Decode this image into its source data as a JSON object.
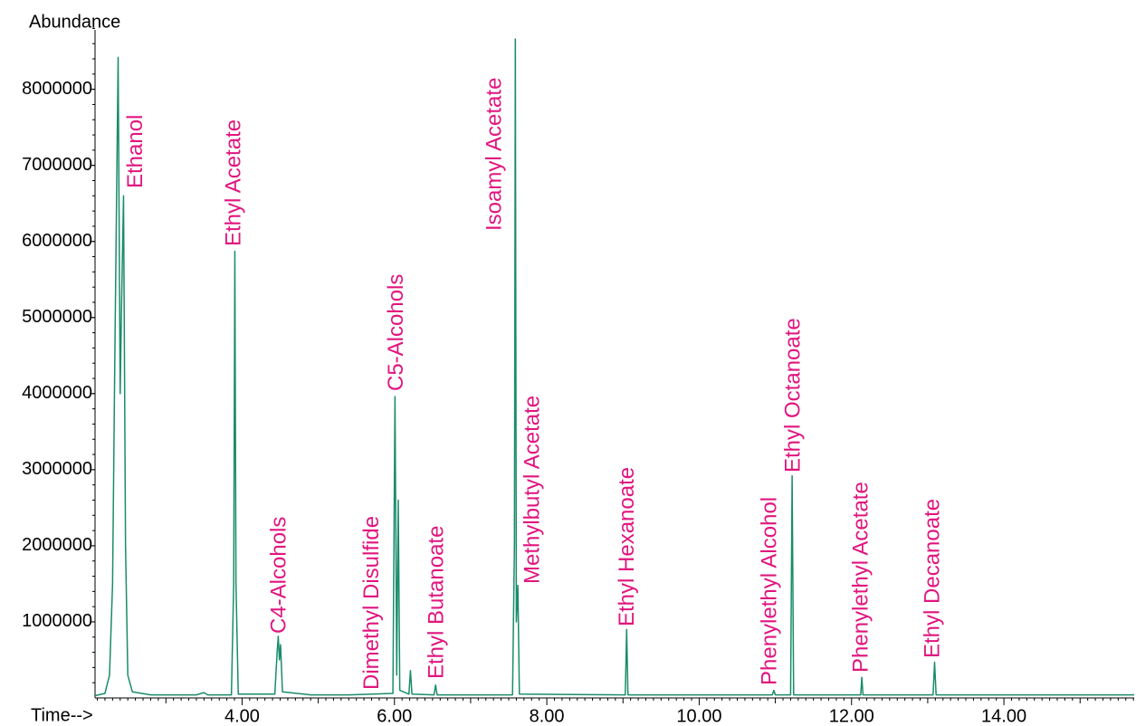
{
  "chart_data": {
    "type": "line",
    "y_label": "Abundance",
    "x_label": "Time-->",
    "color": "#1a8c6a",
    "xlim": [
      2.07,
      15.71
    ],
    "ylim": [
      0,
      8900000
    ],
    "xticks": [
      {
        "value": 4,
        "label": "4.00"
      },
      {
        "value": 6,
        "label": "6.00"
      },
      {
        "value": 8,
        "label": "8.00"
      },
      {
        "value": 10,
        "label": "10.00"
      },
      {
        "value": 12,
        "label": "12.00"
      },
      {
        "value": 14,
        "label": "14.00"
      }
    ],
    "yticks": [
      1000000,
      2000000,
      3000000,
      4000000,
      5000000,
      6000000,
      7000000,
      8000000
    ],
    "x": [
      2.07,
      2.2,
      2.26,
      2.3,
      2.33,
      2.373,
      2.4,
      2.415,
      2.444,
      2.47,
      2.5,
      2.56,
      2.8,
      3.4,
      3.5,
      3.55,
      3.86,
      3.89,
      3.905,
      3.92,
      3.95,
      4.43,
      4.46,
      4.475,
      4.49,
      4.505,
      4.53,
      4.9,
      5.4,
      5.98,
      6.007,
      6.03,
      6.05,
      6.07,
      6.19,
      6.21,
      6.23,
      6.52,
      6.54,
      6.56,
      7.55,
      7.575,
      7.587,
      7.6,
      7.62,
      7.64,
      9.03,
      9.048,
      9.065,
      10.96,
      10.98,
      11.0,
      11.2,
      11.22,
      11.24,
      12.12,
      12.135,
      12.15,
      13.07,
      13.09,
      13.11,
      14.5,
      15.71
    ],
    "values": [
      30000,
      60000,
      300000,
      1500000,
      4500000,
      8420000,
      4000000,
      5000000,
      6600000,
      2000000,
      300000,
      80000,
      40000,
      40000,
      70000,
      40000,
      40000,
      1500000,
      5870000,
      1500000,
      50000,
      50000,
      600000,
      810000,
      500000,
      700000,
      80000,
      40000,
      40000,
      60000,
      3960000,
      300000,
      2600000,
      100000,
      50000,
      360000,
      50000,
      40000,
      170000,
      40000,
      40000,
      2000000,
      8660000,
      1000000,
      1480000,
      50000,
      40000,
      900000,
      40000,
      40000,
      100000,
      40000,
      40000,
      2920000,
      40000,
      40000,
      270000,
      40000,
      40000,
      470000,
      40000,
      40000,
      40000
    ],
    "annotations": [
      {
        "text": "Ethanol",
        "x": 2.6
      },
      {
        "text": "Ethyl Acetate",
        "x": 3.89
      },
      {
        "text": "C4-Alcohols",
        "x": 4.48
      },
      {
        "text": "Dimethyl Disulfide",
        "x": 5.7
      },
      {
        "text": "C5-Alcohols",
        "x": 6.02
      },
      {
        "text": "Ethyl Butanoate",
        "x": 6.55
      },
      {
        "text": "Isoamyl Acetate",
        "x": 7.31
      },
      {
        "text": "Methylbutyl Acetate",
        "x": 7.81
      },
      {
        "text": "Ethyl Hexanoate",
        "x": 9.05
      },
      {
        "text": "Phenylethyl Alcohol",
        "x": 10.92
      },
      {
        "text": "Ethyl Octanoate",
        "x": 11.23
      },
      {
        "text": "Phenylethyl Acetate",
        "x": 12.12
      },
      {
        "text": "Ethyl Decanoate",
        "x": 13.06
      }
    ]
  }
}
